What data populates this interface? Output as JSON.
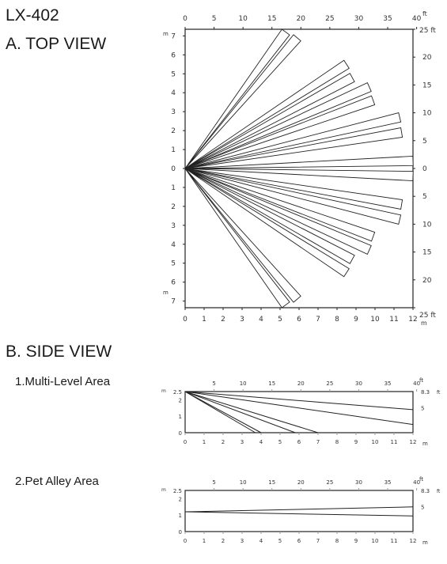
{
  "document": {
    "model": "LX-402",
    "top_view_title": "A. TOP VIEW",
    "side_view_title": "B. SIDE VIEW",
    "side_views": [
      {
        "label": "1.Multi-Level Area"
      },
      {
        "label": "2.Pet Alley Area"
      }
    ]
  },
  "top_view": {
    "x_m_ticks": [
      "0",
      "1",
      "2",
      "3",
      "4",
      "5",
      "6",
      "7",
      "8",
      "9",
      "10",
      "11",
      "12"
    ],
    "x_ft_ticks": [
      "0",
      "5",
      "10",
      "15",
      "20",
      "25",
      "30",
      "35",
      "40"
    ],
    "y_m_ticks": [
      "7",
      "6",
      "5",
      "4",
      "3",
      "2",
      "1",
      "0",
      "1",
      "2",
      "3",
      "4",
      "5",
      "6",
      "7"
    ],
    "y_ft_ticks": [
      "25",
      "20",
      "15",
      "10",
      "5",
      "0",
      "5",
      "10",
      "15",
      "20",
      "25"
    ],
    "unit_m": "m",
    "unit_ft": "ft",
    "corner_top_right": "25 ft",
    "corner_bottom_right": "25 ft",
    "beams": [
      {
        "y_m": 7.2,
        "x_m": 5.3
      },
      {
        "y_m": 6.9,
        "x_m": 5.9
      },
      {
        "y_m": 5.5,
        "x_m": 8.5
      },
      {
        "y_m": 4.8,
        "x_m": 8.8
      },
      {
        "y_m": 4.3,
        "x_m": 9.7
      },
      {
        "y_m": 3.6,
        "x_m": 9.9
      },
      {
        "y_m": 2.7,
        "x_m": 11.3
      },
      {
        "y_m": 1.9,
        "x_m": 11.4
      },
      {
        "y_m": 0.4,
        "x_m": 12.0
      },
      {
        "y_m": -0.4,
        "x_m": 12.0
      },
      {
        "y_m": -1.9,
        "x_m": 11.4
      },
      {
        "y_m": -2.7,
        "x_m": 11.3
      },
      {
        "y_m": -3.6,
        "x_m": 9.9
      },
      {
        "y_m": -4.3,
        "x_m": 9.7
      },
      {
        "y_m": -4.8,
        "x_m": 8.8
      },
      {
        "y_m": -5.5,
        "x_m": 8.5
      },
      {
        "y_m": -6.9,
        "x_m": 5.9
      },
      {
        "y_m": -7.2,
        "x_m": 5.3
      }
    ],
    "beam_width_m": 0.25
  },
  "side_view": {
    "x_m_ticks": [
      "0",
      "1",
      "2",
      "3",
      "4",
      "5",
      "6",
      "7",
      "8",
      "9",
      "10",
      "11",
      "12"
    ],
    "x_ft_ticks": [
      "5",
      "10",
      "15",
      "20",
      "25",
      "30",
      "35",
      "40"
    ],
    "y_m_ticks": [
      "2.5",
      "2",
      "1",
      "0"
    ],
    "y_ft_ticks": [
      "8.3",
      "5"
    ],
    "unit_m": "m",
    "unit_ft": "ft",
    "multi_level_rays": [
      {
        "to_x_m": 12,
        "to_y_m": 1.4
      },
      {
        "to_x_m": 12,
        "to_y_m": 0.5
      },
      {
        "to_x_m": 7,
        "to_y_m": 0
      },
      {
        "to_x_m": 5.8,
        "to_y_m": 0
      },
      {
        "to_x_m": 4,
        "to_y_m": 0
      },
      {
        "to_x_m": 3.7,
        "to_y_m": 0
      }
    ],
    "pet_alley_rays": [
      {
        "from_y_m": 1.2,
        "to_x_m": 12,
        "to_y_m": 1.5
      },
      {
        "from_y_m": 1.2,
        "to_x_m": 12,
        "to_y_m": 0.95
      }
    ]
  }
}
